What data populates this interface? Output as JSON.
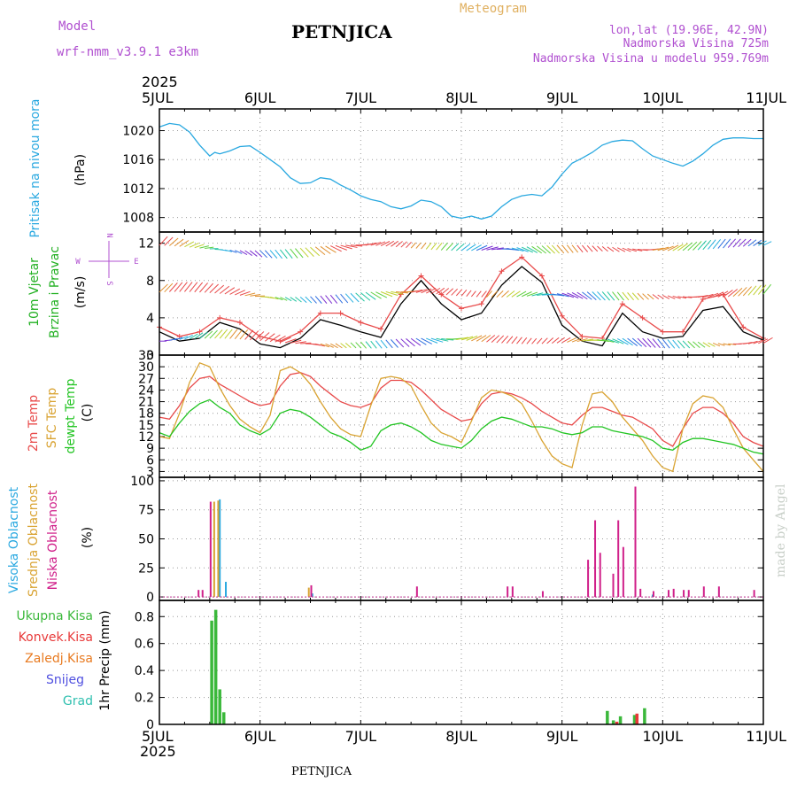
{
  "header": {
    "model_label": "Model",
    "model_name": "wrf-nmm_v3.9.1  e3km",
    "title": "PETNJICA",
    "meteogram": "Meteogram",
    "coords": "lon,lat (19.96E, 42.9N)",
    "elevation": "Nadmorska Visina 725m",
    "model_elevation": "Nadmorska Visina u modelu 959.769m",
    "year_top": "2025",
    "year_bottom": "2025",
    "footer_title": "PETNJICA",
    "credit": "made by Angel"
  },
  "colors": {
    "pressure": "#29a8e0",
    "temp2m": "#e84a4a",
    "sfc_temp": "#d9a332",
    "dewpoint": "#22c422",
    "wind_obs": "#e84a4a",
    "wind_model": "#000000",
    "high_cloud": "#29a8e0",
    "mid_cloud": "#d9a332",
    "low_cloud": "#d0208a",
    "total_precip": "#3bb83b",
    "conv_precip": "#e83a3a",
    "ice_precip": "#e87a20",
    "snow": "#5050e0",
    "hail": "#30c0b0",
    "header_purple": "#b050d0",
    "header_orange": "#e0b060"
  },
  "chart_data": [
    {
      "type": "line",
      "title": "Pritisak na nivou mora",
      "ylabel": "(hPa)",
      "ylim": [
        1006,
        1023
      ],
      "yticks": [
        1008,
        1012,
        1016,
        1020
      ],
      "x_ticks": [
        "5JUL",
        "6JUL",
        "7JUL",
        "8JUL",
        "9JUL",
        "10JUL",
        "11JUL"
      ],
      "series": [
        {
          "name": "Pritisak na nivou mora",
          "color": "#29a8e0",
          "x": [
            0,
            0.1,
            0.2,
            0.3,
            0.4,
            0.5,
            0.55,
            0.6,
            0.7,
            0.8,
            0.9,
            1.0,
            1.1,
            1.2,
            1.3,
            1.4,
            1.5,
            1.6,
            1.7,
            1.8,
            1.9,
            2.0,
            2.1,
            2.2,
            2.3,
            2.4,
            2.5,
            2.6,
            2.7,
            2.8,
            2.9,
            3.0,
            3.1,
            3.2,
            3.3,
            3.4,
            3.5,
            3.6,
            3.7,
            3.8,
            3.9,
            4.0,
            4.1,
            4.2,
            4.3,
            4.4,
            4.5,
            4.6,
            4.7,
            4.8,
            4.9,
            5.0,
            5.1,
            5.2,
            5.3,
            5.4,
            5.5,
            5.6,
            5.7,
            5.8,
            5.9,
            6.0
          ],
          "values": [
            1020.5,
            1021.0,
            1020.8,
            1019.8,
            1018.0,
            1016.5,
            1017.0,
            1016.8,
            1017.2,
            1017.8,
            1017.9,
            1017.0,
            1016.0,
            1015.0,
            1013.5,
            1012.7,
            1012.8,
            1013.5,
            1013.3,
            1012.5,
            1011.8,
            1011.0,
            1010.5,
            1010.2,
            1009.5,
            1009.2,
            1009.6,
            1010.4,
            1010.2,
            1009.5,
            1008.2,
            1007.9,
            1008.2,
            1007.8,
            1008.2,
            1009.5,
            1010.5,
            1011.0,
            1011.2,
            1011.0,
            1012.2,
            1014.0,
            1015.5,
            1016.2,
            1017.0,
            1018.0,
            1018.5,
            1018.7,
            1018.6,
            1017.5,
            1016.5,
            1016.0,
            1015.5,
            1015.1,
            1015.8,
            1016.8,
            1018.0,
            1018.8,
            1019.0,
            1019.0,
            1018.9,
            1018.9
          ]
        }
      ]
    },
    {
      "type": "line",
      "title": "10m Vjetar Brzina i Pravac",
      "ylabel": "(m/s)",
      "ylim": [
        0,
        13.2
      ],
      "yticks": [
        0,
        4,
        8,
        12
      ],
      "legend_compass": "W <--|--> E",
      "series": [
        {
          "name": "Brzina vjetra (model)",
          "color": "#000000",
          "x": [
            0,
            0.2,
            0.4,
            0.6,
            0.8,
            1.0,
            1.2,
            1.4,
            1.6,
            1.8,
            2.0,
            2.2,
            2.4,
            2.6,
            2.8,
            3.0,
            3.2,
            3.4,
            3.6,
            3.8,
            4.0,
            4.2,
            4.4,
            4.6,
            4.8,
            5.0,
            5.2,
            5.4,
            5.6,
            5.8,
            6.0
          ],
          "values": [
            2.5,
            1.5,
            1.8,
            3.5,
            2.8,
            1.2,
            0.8,
            1.8,
            3.8,
            3.2,
            2.5,
            1.9,
            5.5,
            8.0,
            5.5,
            3.8,
            4.5,
            7.5,
            9.5,
            7.8,
            3.2,
            1.5,
            1.0,
            4.5,
            2.5,
            1.8,
            2.0,
            4.8,
            5.2,
            2.5,
            1.6
          ]
        },
        {
          "name": "Udari vjetra",
          "color": "#e84a4a",
          "x": [
            0,
            0.2,
            0.4,
            0.6,
            0.8,
            1.0,
            1.2,
            1.4,
            1.6,
            1.8,
            2.0,
            2.2,
            2.4,
            2.6,
            2.8,
            3.0,
            3.2,
            3.4,
            3.6,
            3.8,
            4.0,
            4.2,
            4.4,
            4.6,
            4.8,
            5.0,
            5.2,
            5.4,
            5.6,
            5.8,
            6.0
          ],
          "values": [
            3.0,
            2.0,
            2.5,
            4.0,
            3.5,
            2.0,
            1.5,
            2.5,
            4.5,
            4.5,
            3.5,
            2.8,
            6.5,
            8.5,
            6.5,
            5.0,
            5.5,
            9.0,
            10.5,
            8.5,
            4.2,
            2.0,
            1.8,
            5.5,
            4.0,
            2.5,
            2.5,
            6.0,
            6.5,
            3.0,
            1.8
          ]
        }
      ]
    },
    {
      "type": "line",
      "title": "2m Temp / SFC Temp / dewpt Temp",
      "ylabel": "(C)",
      "ylim": [
        1.5,
        33
      ],
      "yticks": [
        3,
        6,
        9,
        12,
        15,
        18,
        21,
        24,
        27,
        30,
        33
      ],
      "series": [
        {
          "name": "2m Temp",
          "color": "#e84a4a",
          "x": [
            0,
            0.1,
            0.2,
            0.3,
            0.4,
            0.5,
            0.6,
            0.7,
            0.8,
            0.9,
            1.0,
            1.1,
            1.2,
            1.3,
            1.4,
            1.5,
            1.6,
            1.7,
            1.8,
            1.9,
            2.0,
            2.1,
            2.2,
            2.3,
            2.4,
            2.5,
            2.6,
            2.7,
            2.8,
            2.9,
            3.0,
            3.1,
            3.2,
            3.3,
            3.4,
            3.5,
            3.6,
            3.7,
            3.8,
            3.9,
            4.0,
            4.1,
            4.2,
            4.3,
            4.4,
            4.5,
            4.6,
            4.7,
            4.8,
            4.9,
            5.0,
            5.1,
            5.2,
            5.3,
            5.4,
            5.5,
            5.6,
            5.7,
            5.8,
            5.9,
            6.0
          ],
          "values": [
            17.0,
            16.5,
            20.0,
            24.5,
            27.0,
            27.5,
            25.5,
            24.0,
            22.5,
            21.0,
            20.0,
            20.5,
            25.0,
            28.0,
            28.5,
            27.5,
            25.0,
            23.0,
            21.0,
            20.0,
            19.5,
            20.5,
            24.5,
            26.5,
            26.5,
            26.0,
            24.0,
            21.5,
            19.0,
            17.5,
            16.0,
            16.5,
            20.5,
            23.0,
            23.5,
            23.0,
            22.0,
            20.5,
            18.5,
            17.0,
            15.5,
            15.0,
            17.5,
            19.5,
            19.5,
            18.5,
            17.5,
            17.0,
            15.5,
            14.0,
            11.0,
            9.5,
            14.0,
            18.0,
            19.5,
            19.5,
            18.0,
            15.5,
            12.0,
            10.5,
            9.5
          ]
        },
        {
          "name": "SFC Temp",
          "color": "#d9a332",
          "x": [
            0,
            0.1,
            0.2,
            0.3,
            0.4,
            0.5,
            0.6,
            0.7,
            0.8,
            0.9,
            1.0,
            1.1,
            1.2,
            1.3,
            1.4,
            1.5,
            1.6,
            1.7,
            1.8,
            1.9,
            2.0,
            2.1,
            2.2,
            2.3,
            2.4,
            2.5,
            2.6,
            2.7,
            2.8,
            2.9,
            3.0,
            3.1,
            3.2,
            3.3,
            3.4,
            3.5,
            3.6,
            3.7,
            3.8,
            3.9,
            4.0,
            4.1,
            4.2,
            4.3,
            4.4,
            4.5,
            4.6,
            4.7,
            4.8,
            4.9,
            5.0,
            5.1,
            5.2,
            5.3,
            5.4,
            5.5,
            5.6,
            5.7,
            5.8,
            5.9,
            6.0
          ],
          "values": [
            12.0,
            11.5,
            18.0,
            26.0,
            31.0,
            30.0,
            24.5,
            20.0,
            16.5,
            14.5,
            13.0,
            17.5,
            29.0,
            30.0,
            28.5,
            25.5,
            21.0,
            17.0,
            14.0,
            12.5,
            12.0,
            20.0,
            27.0,
            27.5,
            27.0,
            25.0,
            20.0,
            15.5,
            13.0,
            12.0,
            10.5,
            16.0,
            22.0,
            24.0,
            23.5,
            22.5,
            20.5,
            16.0,
            11.0,
            7.0,
            5.0,
            4.0,
            15.0,
            23.0,
            23.5,
            21.0,
            17.0,
            14.0,
            11.0,
            7.0,
            4.0,
            3.0,
            14.0,
            20.5,
            22.5,
            22.0,
            19.5,
            14.0,
            9.0,
            6.0,
            3.0
          ]
        },
        {
          "name": "dewpt Temp",
          "color": "#22c422",
          "x": [
            0,
            0.1,
            0.2,
            0.3,
            0.4,
            0.5,
            0.6,
            0.7,
            0.8,
            0.9,
            1.0,
            1.1,
            1.2,
            1.3,
            1.4,
            1.5,
            1.6,
            1.7,
            1.8,
            1.9,
            2.0,
            2.1,
            2.2,
            2.3,
            2.4,
            2.5,
            2.6,
            2.7,
            2.8,
            2.9,
            3.0,
            3.1,
            3.2,
            3.3,
            3.4,
            3.5,
            3.6,
            3.7,
            3.8,
            3.9,
            4.0,
            4.1,
            4.2,
            4.3,
            4.4,
            4.5,
            4.6,
            4.7,
            4.8,
            4.9,
            5.0,
            5.1,
            5.2,
            5.3,
            5.4,
            5.5,
            5.6,
            5.7,
            5.8,
            5.9,
            6.0
          ],
          "values": [
            13.0,
            12.0,
            15.5,
            18.5,
            20.5,
            21.5,
            19.5,
            18.0,
            15.0,
            13.5,
            12.5,
            14.0,
            18.0,
            19.0,
            18.5,
            17.0,
            15.0,
            13.0,
            12.0,
            10.5,
            8.5,
            9.5,
            13.5,
            15.0,
            15.5,
            14.5,
            13.0,
            11.0,
            10.0,
            9.5,
            9.0,
            11.0,
            14.0,
            16.0,
            17.0,
            16.5,
            15.5,
            14.5,
            14.5,
            14.0,
            13.0,
            12.5,
            13.0,
            14.5,
            14.5,
            13.5,
            13.0,
            12.5,
            12.0,
            11.0,
            9.0,
            8.5,
            10.5,
            11.5,
            11.5,
            11.0,
            10.5,
            10.0,
            9.0,
            8.0,
            7.5
          ]
        }
      ]
    },
    {
      "type": "bar",
      "title": "Visoka / Srednja / Niska Oblacnost",
      "ylabel": "(%)",
      "ylim": [
        -3,
        103
      ],
      "yticks": [
        0,
        25,
        50,
        75,
        100
      ],
      "series": [
        {
          "name": "Visoka Oblacnost",
          "color": "#29a8e0",
          "x": [
            0.6,
            0.66,
            1.52,
            4.9
          ],
          "values": [
            84,
            13,
            3,
            2
          ]
        },
        {
          "name": "Srednja Oblacnost",
          "color": "#d9a332",
          "x": [
            0.54,
            0.58,
            1.48
          ],
          "values": [
            82,
            83,
            8
          ]
        },
        {
          "name": "Niska Oblacnost",
          "color": "#d0208a",
          "x": [
            0.38,
            0.42,
            0.5,
            1.5,
            2.55,
            3.45,
            3.5,
            3.8,
            4.25,
            4.32,
            4.37,
            4.5,
            4.55,
            4.6,
            4.72,
            4.77,
            4.9,
            5.05,
            5.1,
            5.2,
            5.25,
            5.4,
            5.55,
            5.9
          ],
          "values": [
            6,
            6,
            82,
            10,
            9,
            9,
            9,
            5,
            32,
            66,
            38,
            20,
            66,
            43,
            95,
            7,
            5,
            6,
            7,
            6,
            6,
            9,
            9,
            6
          ]
        }
      ]
    },
    {
      "type": "bar",
      "title": "1hr Precip",
      "ylabel": "1hr Precip (mm)",
      "ylim": [
        0,
        0.92
      ],
      "yticks": [
        0,
        0.2,
        0.4,
        0.6,
        0.8
      ],
      "legend": [
        "Ukupna Kisa",
        "Konvek.Kisa",
        "Zaledj.Kisa",
        "Snijeg",
        "Grad"
      ],
      "series": [
        {
          "name": "Ukupna Kisa",
          "color": "#3bb83b",
          "x": [
            0.52,
            0.56,
            0.6,
            0.64,
            4.45,
            4.51,
            4.58,
            4.72,
            4.82
          ],
          "values": [
            0.77,
            0.85,
            0.26,
            0.09,
            0.1,
            0.03,
            0.06,
            0.07,
            0.12
          ]
        },
        {
          "name": "Konvek.Kisa",
          "color": "#e83a3a",
          "x": [
            4.54,
            4.74
          ],
          "values": [
            0.02,
            0.08
          ]
        },
        {
          "name": "Zaledj.Kisa",
          "color": "#e87a20",
          "x": [],
          "values": []
        },
        {
          "name": "Snijeg",
          "color": "#5050e0",
          "x": [],
          "values": []
        },
        {
          "name": "Grad",
          "color": "#30c0b0",
          "x": [],
          "values": []
        }
      ]
    }
  ],
  "panel_labels": {
    "pressure": [
      "Pritisak na nivou mora",
      "(hPa)"
    ],
    "wind": [
      "10m Vjetar",
      "Brzina i Pravac",
      "(m/s)"
    ],
    "temp": [
      "2m Temp",
      "SFC Temp",
      "dewpt Temp",
      "(C)"
    ],
    "cloud": [
      "Visoka Oblacnost",
      "Srednja Oblacnost",
      "Niska Oblacnost",
      "(%)"
    ],
    "precip_unit": "1hr Precip (mm)",
    "compass": [
      "N",
      "W",
      "E",
      "S"
    ]
  }
}
